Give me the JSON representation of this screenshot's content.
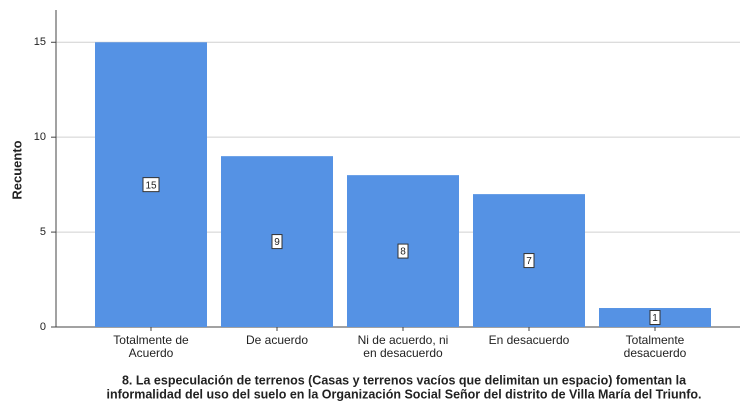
{
  "chart_data": {
    "type": "bar",
    "title": [
      "8. La especulación de terrenos (Casas y terrenos vacíos que delimitan un espacio) fomentan la",
      "informalidad del uso del suelo en la Organización Social Señor del distrito de Villa María del Triunfo."
    ],
    "ylabel": "Recuento",
    "categories": [
      [
        "Totalmente de",
        "Acuerdo"
      ],
      [
        "De acuerdo"
      ],
      [
        "Ni de acuerdo, ni",
        "en desacuerdo"
      ],
      [
        "En desacuerdo"
      ],
      [
        "Totalmente",
        "desacuerdo"
      ]
    ],
    "values": [
      15,
      9,
      8,
      7,
      1
    ],
    "color": "#5592e4",
    "ylim": [
      0,
      16.7
    ],
    "yticks": [
      0,
      5,
      10,
      15
    ],
    "grid": true
  }
}
